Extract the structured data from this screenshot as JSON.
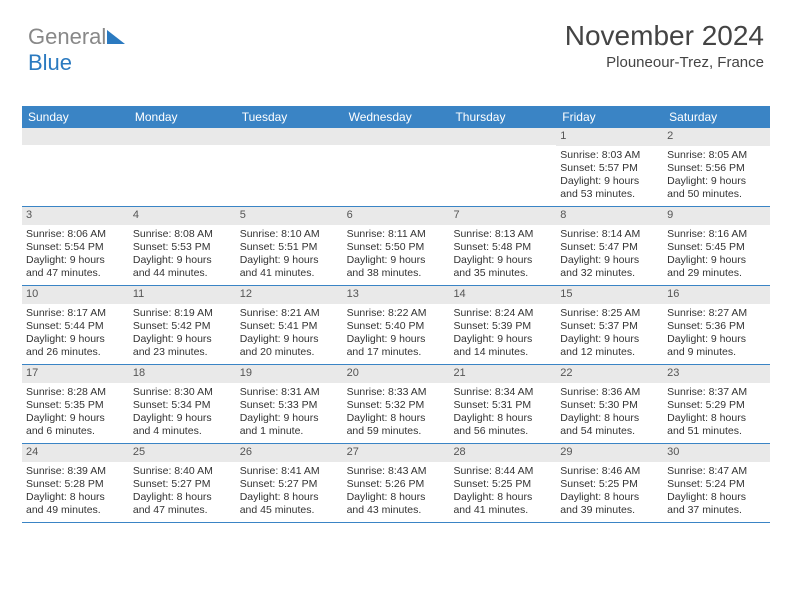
{
  "logo": {
    "part1": "General",
    "part2": "Blue"
  },
  "title": "November 2024",
  "location": "Plouneour-Trez, France",
  "colors": {
    "header_bg": "#3a84c5",
    "header_text": "#ffffff",
    "daynum_bg": "#e9e9e9",
    "divider": "#3a84c5",
    "text": "#333333",
    "logo_gray": "#888888",
    "logo_blue": "#2b7ac0"
  },
  "day_headers": [
    "Sunday",
    "Monday",
    "Tuesday",
    "Wednesday",
    "Thursday",
    "Friday",
    "Saturday"
  ],
  "weeks": [
    [
      {
        "empty": true
      },
      {
        "empty": true
      },
      {
        "empty": true
      },
      {
        "empty": true
      },
      {
        "empty": true
      },
      {
        "num": "1",
        "sunrise": "Sunrise: 8:03 AM",
        "sunset": "Sunset: 5:57 PM",
        "daylight": "Daylight: 9 hours and 53 minutes."
      },
      {
        "num": "2",
        "sunrise": "Sunrise: 8:05 AM",
        "sunset": "Sunset: 5:56 PM",
        "daylight": "Daylight: 9 hours and 50 minutes."
      }
    ],
    [
      {
        "num": "3",
        "sunrise": "Sunrise: 8:06 AM",
        "sunset": "Sunset: 5:54 PM",
        "daylight": "Daylight: 9 hours and 47 minutes."
      },
      {
        "num": "4",
        "sunrise": "Sunrise: 8:08 AM",
        "sunset": "Sunset: 5:53 PM",
        "daylight": "Daylight: 9 hours and 44 minutes."
      },
      {
        "num": "5",
        "sunrise": "Sunrise: 8:10 AM",
        "sunset": "Sunset: 5:51 PM",
        "daylight": "Daylight: 9 hours and 41 minutes."
      },
      {
        "num": "6",
        "sunrise": "Sunrise: 8:11 AM",
        "sunset": "Sunset: 5:50 PM",
        "daylight": "Daylight: 9 hours and 38 minutes."
      },
      {
        "num": "7",
        "sunrise": "Sunrise: 8:13 AM",
        "sunset": "Sunset: 5:48 PM",
        "daylight": "Daylight: 9 hours and 35 minutes."
      },
      {
        "num": "8",
        "sunrise": "Sunrise: 8:14 AM",
        "sunset": "Sunset: 5:47 PM",
        "daylight": "Daylight: 9 hours and 32 minutes."
      },
      {
        "num": "9",
        "sunrise": "Sunrise: 8:16 AM",
        "sunset": "Sunset: 5:45 PM",
        "daylight": "Daylight: 9 hours and 29 minutes."
      }
    ],
    [
      {
        "num": "10",
        "sunrise": "Sunrise: 8:17 AM",
        "sunset": "Sunset: 5:44 PM",
        "daylight": "Daylight: 9 hours and 26 minutes."
      },
      {
        "num": "11",
        "sunrise": "Sunrise: 8:19 AM",
        "sunset": "Sunset: 5:42 PM",
        "daylight": "Daylight: 9 hours and 23 minutes."
      },
      {
        "num": "12",
        "sunrise": "Sunrise: 8:21 AM",
        "sunset": "Sunset: 5:41 PM",
        "daylight": "Daylight: 9 hours and 20 minutes."
      },
      {
        "num": "13",
        "sunrise": "Sunrise: 8:22 AM",
        "sunset": "Sunset: 5:40 PM",
        "daylight": "Daylight: 9 hours and 17 minutes."
      },
      {
        "num": "14",
        "sunrise": "Sunrise: 8:24 AM",
        "sunset": "Sunset: 5:39 PM",
        "daylight": "Daylight: 9 hours and 14 minutes."
      },
      {
        "num": "15",
        "sunrise": "Sunrise: 8:25 AM",
        "sunset": "Sunset: 5:37 PM",
        "daylight": "Daylight: 9 hours and 12 minutes."
      },
      {
        "num": "16",
        "sunrise": "Sunrise: 8:27 AM",
        "sunset": "Sunset: 5:36 PM",
        "daylight": "Daylight: 9 hours and 9 minutes."
      }
    ],
    [
      {
        "num": "17",
        "sunrise": "Sunrise: 8:28 AM",
        "sunset": "Sunset: 5:35 PM",
        "daylight": "Daylight: 9 hours and 6 minutes."
      },
      {
        "num": "18",
        "sunrise": "Sunrise: 8:30 AM",
        "sunset": "Sunset: 5:34 PM",
        "daylight": "Daylight: 9 hours and 4 minutes."
      },
      {
        "num": "19",
        "sunrise": "Sunrise: 8:31 AM",
        "sunset": "Sunset: 5:33 PM",
        "daylight": "Daylight: 9 hours and 1 minute."
      },
      {
        "num": "20",
        "sunrise": "Sunrise: 8:33 AM",
        "sunset": "Sunset: 5:32 PM",
        "daylight": "Daylight: 8 hours and 59 minutes."
      },
      {
        "num": "21",
        "sunrise": "Sunrise: 8:34 AM",
        "sunset": "Sunset: 5:31 PM",
        "daylight": "Daylight: 8 hours and 56 minutes."
      },
      {
        "num": "22",
        "sunrise": "Sunrise: 8:36 AM",
        "sunset": "Sunset: 5:30 PM",
        "daylight": "Daylight: 8 hours and 54 minutes."
      },
      {
        "num": "23",
        "sunrise": "Sunrise: 8:37 AM",
        "sunset": "Sunset: 5:29 PM",
        "daylight": "Daylight: 8 hours and 51 minutes."
      }
    ],
    [
      {
        "num": "24",
        "sunrise": "Sunrise: 8:39 AM",
        "sunset": "Sunset: 5:28 PM",
        "daylight": "Daylight: 8 hours and 49 minutes."
      },
      {
        "num": "25",
        "sunrise": "Sunrise: 8:40 AM",
        "sunset": "Sunset: 5:27 PM",
        "daylight": "Daylight: 8 hours and 47 minutes."
      },
      {
        "num": "26",
        "sunrise": "Sunrise: 8:41 AM",
        "sunset": "Sunset: 5:27 PM",
        "daylight": "Daylight: 8 hours and 45 minutes."
      },
      {
        "num": "27",
        "sunrise": "Sunrise: 8:43 AM",
        "sunset": "Sunset: 5:26 PM",
        "daylight": "Daylight: 8 hours and 43 minutes."
      },
      {
        "num": "28",
        "sunrise": "Sunrise: 8:44 AM",
        "sunset": "Sunset: 5:25 PM",
        "daylight": "Daylight: 8 hours and 41 minutes."
      },
      {
        "num": "29",
        "sunrise": "Sunrise: 8:46 AM",
        "sunset": "Sunset: 5:25 PM",
        "daylight": "Daylight: 8 hours and 39 minutes."
      },
      {
        "num": "30",
        "sunrise": "Sunrise: 8:47 AM",
        "sunset": "Sunset: 5:24 PM",
        "daylight": "Daylight: 8 hours and 37 minutes."
      }
    ]
  ]
}
